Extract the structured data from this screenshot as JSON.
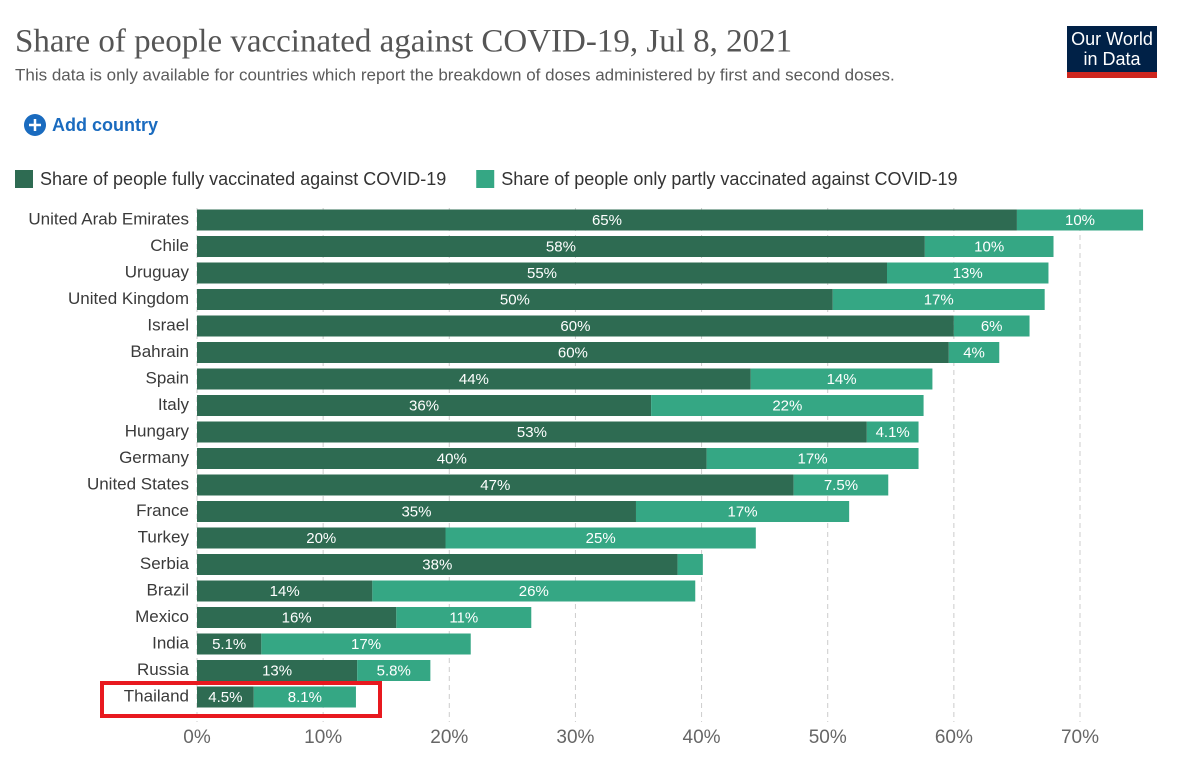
{
  "logo": [
    "Our World",
    "in Data"
  ],
  "add_country": "Add country",
  "chart_data": {
    "type": "stacked_bar_horizontal",
    "title": "Share of people vaccinated against COVID-19, Jul 8, 2021",
    "subtitle": "This data is only available for countries which report the breakdown of doses administered by first and second doses.",
    "categories": [
      "United Arab Emirates",
      "Chile",
      "Uruguay",
      "United Kingdom",
      "Israel",
      "Bahrain",
      "Spain",
      "Italy",
      "Hungary",
      "Germany",
      "United States",
      "France",
      "Turkey",
      "Serbia",
      "Brazil",
      "Mexico",
      "India",
      "Russia",
      "Thailand"
    ],
    "series": [
      {
        "name": "Share of people fully vaccinated against COVID-19",
        "color": "#2e6b52",
        "values": [
          65.0,
          57.7,
          54.7,
          50.4,
          60.0,
          59.6,
          43.9,
          36.0,
          53.1,
          40.4,
          47.3,
          34.8,
          19.7,
          38.1,
          13.9,
          15.8,
          5.1,
          12.7,
          4.5
        ],
        "value_labels": [
          "65%",
          "58%",
          "55%",
          "50%",
          "60%",
          "60%",
          "44%",
          "36%",
          "53%",
          "40%",
          "47%",
          "35%",
          "20%",
          "38%",
          "14%",
          "16%",
          "5.1%",
          "13%",
          "4.5%"
        ]
      },
      {
        "name": "Share of people only partly vaccinated against COVID-19",
        "color": "#35a784",
        "values": [
          10.0,
          10.2,
          12.8,
          16.8,
          6.0,
          4.0,
          14.4,
          21.6,
          4.1,
          16.8,
          7.5,
          16.9,
          24.6,
          2.0,
          25.6,
          10.7,
          16.6,
          5.8,
          8.1
        ],
        "value_labels": [
          "10%",
          "10%",
          "13%",
          "17%",
          "6%",
          "4%",
          "14%",
          "22%",
          "4.1%",
          "17%",
          "7.5%",
          "17%",
          "25%",
          null,
          "26%",
          "11%",
          "17%",
          "5.8%",
          "8.1%"
        ]
      }
    ],
    "xlim": [
      0,
      70
    ],
    "xticks": [
      {
        "value": 0,
        "label": "0%"
      },
      {
        "value": 10,
        "label": "10%"
      },
      {
        "value": 20,
        "label": "20%"
      },
      {
        "value": 30,
        "label": "30%"
      },
      {
        "value": 40,
        "label": "40%"
      },
      {
        "value": 50,
        "label": "50%"
      },
      {
        "value": 60,
        "label": "60%"
      },
      {
        "value": 70,
        "label": "70%"
      }
    ],
    "grid": true,
    "legend": "top"
  }
}
